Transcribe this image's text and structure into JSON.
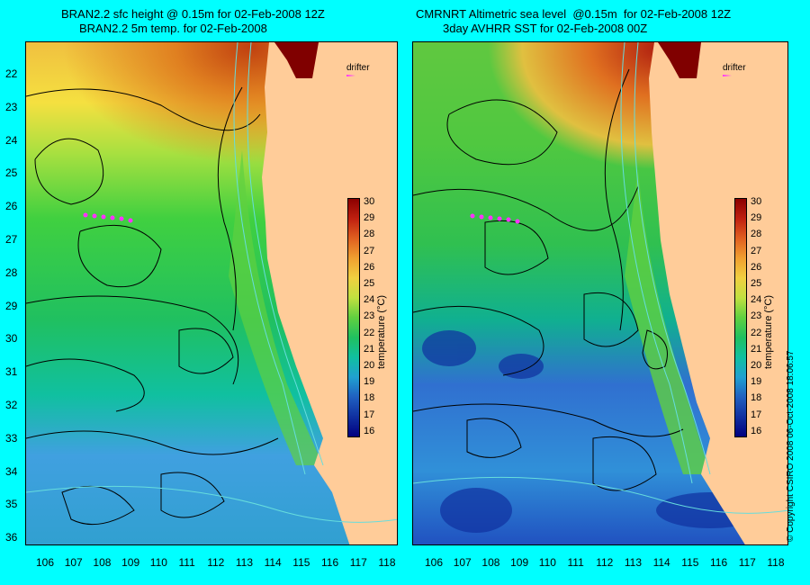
{
  "left_panel": {
    "title_line1": "BRAN2.2 sfc height @ 0.15m for 02-Feb-2008 12Z",
    "title_line2": "BRAN2.2 5m temp. for 02-Feb-2008",
    "drifter_label": "drifter"
  },
  "right_panel": {
    "title_line1": "CMRNRT Altimetric sea level  @0.15m  for 02-Feb-2008 12Z",
    "title_line2": "3day AVHRR SST for 02-Feb-2008 00Z",
    "drifter_label": "drifter"
  },
  "longitude_ticks": [
    "106",
    "107",
    "108",
    "109",
    "110",
    "111",
    "112",
    "113",
    "114",
    "115",
    "116",
    "117",
    "118"
  ],
  "latitude_ticks": [
    "22",
    "23",
    "24",
    "25",
    "26",
    "27",
    "28",
    "29",
    "30",
    "31",
    "32",
    "33",
    "34",
    "35",
    "36"
  ],
  "colorbar": {
    "title": "temperature (°C)",
    "ticks": [
      "30",
      "29",
      "28",
      "27",
      "26",
      "25",
      "24",
      "23",
      "22",
      "21",
      "20",
      "19",
      "18",
      "17",
      "16"
    ]
  },
  "copyright": "© Copyright CSIRO 2008   06-Oct-2008 18:06:57",
  "colors": {
    "background": "#00ffff",
    "land": "#ffcc99",
    "drifter": "#ff33ff",
    "contour": "#000000",
    "bathymetry": "#66dddd"
  }
}
